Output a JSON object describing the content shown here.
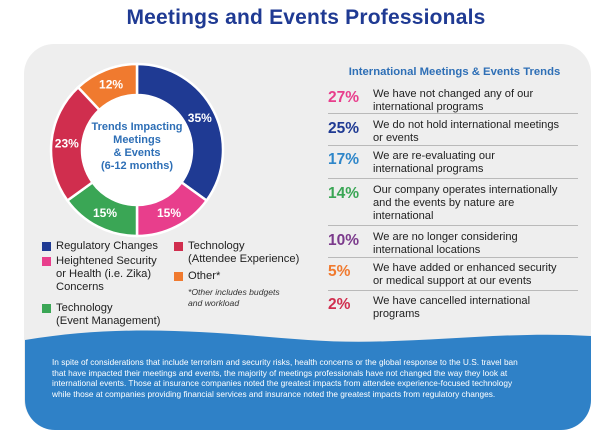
{
  "title": "Meetings and Events Professionals",
  "colors": {
    "title": "#1f3a93",
    "regulatory": "#1f3a93",
    "heightened": "#e83e8c",
    "event_mgmt": "#3aa655",
    "attendee": "#d02e4e",
    "other": "#f07a2f",
    "banner": "#2f81c7"
  },
  "chart_data": {
    "type": "pie",
    "title": "Trends Impacting Meetings & Events (6-12 months)",
    "center_label": [
      "Trends Impacting",
      "Meetings",
      "& Events",
      "(6-12 months)"
    ],
    "slices": [
      {
        "name": "Regulatory Changes",
        "value": 35,
        "label": "35%",
        "color": "#1f3a93"
      },
      {
        "name": "Heightened Security or Health (i.e. Zika) Concerns",
        "value": 15,
        "label": "15%",
        "color": "#e83e8c"
      },
      {
        "name": "Technology (Event Management)",
        "value": 15,
        "label": "15%",
        "color": "#3aa655"
      },
      {
        "name": "Technology (Attendee Experience)",
        "value": 23,
        "label": "23%",
        "color": "#d02e4e"
      },
      {
        "name": "Other*",
        "value": 12,
        "label": "12%",
        "color": "#f07a2f"
      }
    ]
  },
  "legend": {
    "regulatory": "Regulatory Changes",
    "heightened_1": "Heightened Security",
    "heightened_2": "or Health (i.e. Zika)",
    "heightened_3": "Concerns",
    "event_1": "Technology",
    "event_2": "(Event Management)",
    "attendee_1": "Technology",
    "attendee_2": "(Attendee Experience)",
    "other": "Other*",
    "note_1": "*Other includes budgets",
    "note_2": "and workload"
  },
  "trends": {
    "title": "International Meetings & Events Trends",
    "items": [
      {
        "pct": "27%",
        "color": "#e83e8c",
        "line1": "We have not changed any of our",
        "line2": "international programs",
        "line3": ""
      },
      {
        "pct": "25%",
        "color": "#1f3a93",
        "line1": "We do not hold international meetings",
        "line2": "or events",
        "line3": ""
      },
      {
        "pct": "17%",
        "color": "#2e86c9",
        "line1": "We are re-evaluating our",
        "line2": "international programs",
        "line3": ""
      },
      {
        "pct": "14%",
        "color": "#3aa655",
        "line1": "Our company operates internationally",
        "line2": "and the events by nature are",
        "line3": "international"
      },
      {
        "pct": "10%",
        "color": "#7b3a8c",
        "line1": "We are no longer considering",
        "line2": "international locations",
        "line3": ""
      },
      {
        "pct": "5%",
        "color": "#f07a2f",
        "line1": "We have added or enhanced security",
        "line2": "or medical support at our events",
        "line3": ""
      },
      {
        "pct": "2%",
        "color": "#d02e4e",
        "line1": "We have cancelled international",
        "line2": "programs",
        "line3": ""
      }
    ]
  },
  "footer": {
    "line1": "In spite of considerations that include terrorism and security risks, health concerns or the global response to the U.S. travel ban",
    "line2": "that have impacted their meetings and events, the majority of meetings professionals have not changed the way they look at",
    "line3": "international events. Those at insurance companies noted the greatest impacts from attendee experience-focused technology",
    "line4": "while those at companies providing financial services and insurance noted the greatest impacts from regulatory changes."
  }
}
